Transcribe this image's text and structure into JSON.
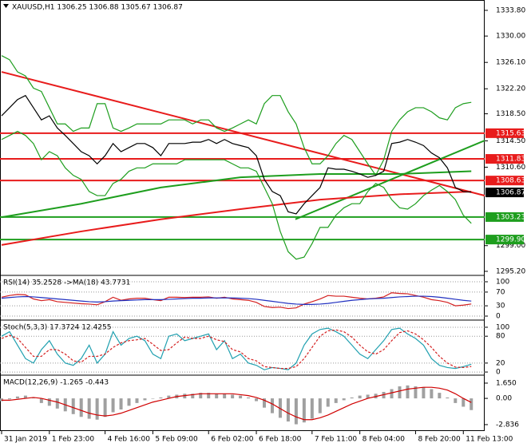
{
  "chart_data": [
    {
      "type": "line",
      "title": "XAUUSD,H1 1306.25 1306.88 1305.67 1306.87",
      "categories": [
        "31 Jan 2019",
        null,
        null,
        null,
        null,
        null,
        "1 Feb 23:00",
        null,
        null,
        null,
        null,
        null,
        null,
        "4 Feb 16:00",
        null,
        null,
        null,
        null,
        null,
        "5 Feb 09:00",
        null,
        null,
        null,
        null,
        null,
        null,
        "6 Feb 02:00",
        null,
        null,
        null,
        null,
        null,
        "6 Feb 18:00",
        null,
        null,
        null,
        null,
        null,
        null,
        "7 Feb 11:00",
        null,
        null,
        null,
        null,
        null,
        "8 Feb 04:00",
        null,
        null,
        null,
        null,
        null,
        null,
        "8 Feb 20:00",
        null,
        null,
        null,
        null,
        null,
        "11 Feb 13:00",
        null
      ],
      "ylim": [
        1294.6,
        1335.33
      ],
      "yticks": [
        {
          "value": 1333.8,
          "label": "1333.80"
        },
        {
          "value": 1330,
          "label": "1330.00"
        },
        {
          "value": 1326.1,
          "label": "1326.10"
        },
        {
          "value": 1322.2,
          "label": "1322.20"
        },
        {
          "value": 1318.5,
          "label": "1318.50"
        },
        {
          "value": 1314.5,
          "label": "1314.50"
        },
        {
          "value": 1310.6,
          "label": "1310.60"
        },
        {
          "value": 1299,
          "label": "1299.00"
        },
        {
          "value": 1295.2,
          "label": "1295.20"
        }
      ],
      "grid": false,
      "series": [
        {
          "color": "#1e9e1e",
          "values": [
            1327.1,
            1326.5,
            1324.7,
            1324.1,
            1322.3,
            1321.8,
            1319.4,
            1317.0,
            1317.0,
            1315.9,
            1316.4,
            1316.4,
            1320.0,
            1320.0,
            1316.4,
            1315.9,
            1316.4,
            1317.0,
            1317.0,
            1317.0,
            1317.0,
            1317.6,
            1317.6,
            1317.6,
            1317.0,
            1317.6,
            1317.6,
            1316.4,
            1315.9,
            1316.4,
            1317.0,
            1317.6,
            1317.0,
            1320.0,
            1321.2,
            1321.2,
            1318.8,
            1317.0,
            1313.5,
            1311.1,
            1311.1,
            1312.3,
            1314.1,
            1315.3,
            1314.7,
            1312.9,
            1311.1,
            1309.4,
            1311.7,
            1315.9,
            1317.6,
            1318.8,
            1319.4,
            1319.4,
            1318.8,
            1317.9,
            1317.6,
            1319.4,
            1320.0,
            1320.2
          ]
        },
        {
          "color": "#1e9e1e",
          "values": [
            1314.7,
            1315.3,
            1315.9,
            1315.3,
            1314.1,
            1311.7,
            1312.9,
            1312.3,
            1310.5,
            1309.4,
            1308.8,
            1307.0,
            1306.4,
            1306.4,
            1308.2,
            1308.8,
            1310.0,
            1310.5,
            1310.5,
            1311.1,
            1311.1,
            1311.1,
            1311.1,
            1311.7,
            1311.7,
            1311.7,
            1311.7,
            1311.7,
            1311.7,
            1311.1,
            1310.5,
            1310.5,
            1310.0,
            1307.6,
            1305.2,
            1301.1,
            1298.1,
            1297.0,
            1297.3,
            1299.3,
            1301.7,
            1301.7,
            1303.5,
            1304.6,
            1305.2,
            1305.2,
            1307.0,
            1308.2,
            1307.6,
            1305.8,
            1304.6,
            1304.4,
            1305.2,
            1306.4,
            1307.2,
            1307.9,
            1307.0,
            1305.8,
            1303.5,
            1302.3
          ]
        },
        {
          "color": "#000000",
          "values": [
            1318.2,
            1319.4,
            1320.6,
            1321.2,
            1319.4,
            1317.6,
            1318.2,
            1316.4,
            1315.3,
            1314.1,
            1312.9,
            1312.3,
            1311.1,
            1312.3,
            1314.1,
            1312.9,
            1313.5,
            1314.1,
            1314.1,
            1313.5,
            1312.3,
            1314.1,
            1314.1,
            1314.1,
            1314.3,
            1314.3,
            1314.7,
            1314.1,
            1314.7,
            1314.1,
            1313.8,
            1313.5,
            1312.3,
            1308.8,
            1307.0,
            1306.4,
            1304.0,
            1303.7,
            1305.2,
            1306.4,
            1307.6,
            1310.5,
            1310.3,
            1310.3,
            1310.0,
            1309.6,
            1309.1,
            1309.4,
            1310.0,
            1314.1,
            1314.3,
            1314.7,
            1314.3,
            1313.8,
            1312.7,
            1312.0,
            1310.5,
            1307.6,
            1307.0,
            1306.9
          ]
        }
      ],
      "trendlines": [
        {
          "color": "#e81c1c",
          "points": [
            [
              0,
              1324.7
            ],
            [
              61,
              1306.3
            ]
          ]
        },
        {
          "color": "#1e9e1e",
          "points": [
            [
              36.9,
              1302.9
            ],
            [
              61,
              1314.7
            ]
          ]
        },
        {
          "color": "#e81c1c",
          "points": [
            [
              0,
              1299.1
            ],
            [
              10,
              1301.1
            ],
            [
              20,
              1302.9
            ],
            [
              30,
              1304.4
            ],
            [
              40,
              1305.8
            ],
            [
              50,
              1306.6
            ],
            [
              59,
              1307.0
            ]
          ]
        },
        {
          "color": "#1e9e1e",
          "points": [
            [
              0,
              1303.2
            ],
            [
              10,
              1305.2
            ],
            [
              20,
              1307.6
            ],
            [
              30,
              1309.1
            ],
            [
              40,
              1309.6
            ],
            [
              50,
              1309.6
            ],
            [
              59,
              1310.0
            ]
          ]
        }
      ],
      "levels": [
        1315.63,
        1311.83,
        1308.63,
        1303.23,
        {
          "value": 1299.9,
          "label": "1299.90"
        }
      ],
      "level_colors": [
        "#e81c1c",
        "#e81c1c",
        "#e81c1c",
        "#1e9e1e",
        "#1e9e1e"
      ],
      "last_price": 1306.87
    },
    {
      "type": "line",
      "title": "RSI(14) 35.2528 ->MA(18) 43.7731",
      "ylim": [
        -11.6,
        118.6
      ],
      "yticks": [
        100,
        70,
        30,
        0
      ],
      "grid": true,
      "series": [
        {
          "color": "#d42020",
          "values": [
            55,
            60,
            63,
            62,
            50,
            45,
            48,
            42,
            40,
            38,
            36,
            35,
            33,
            42,
            55,
            46,
            50,
            52,
            52,
            48,
            45,
            55,
            55,
            54,
            55,
            55,
            56,
            52,
            55,
            50,
            48,
            46,
            40,
            28,
            25,
            26,
            22,
            24,
            35,
            42,
            50,
            60,
            58,
            58,
            55,
            52,
            50,
            52,
            56,
            68,
            66,
            65,
            60,
            55,
            48,
            45,
            40,
            30,
            32,
            35.3
          ]
        },
        {
          "color": "#2030c0",
          "values": [
            52,
            54,
            56,
            57,
            56,
            54,
            52,
            50,
            48,
            46,
            44,
            42,
            41,
            42,
            44,
            45,
            46,
            47,
            48,
            48,
            48,
            49,
            50,
            51,
            52,
            52,
            53,
            53,
            53,
            53,
            52,
            51,
            49,
            46,
            43,
            40,
            37,
            35,
            34,
            34,
            35,
            37,
            40,
            43,
            46,
            48,
            50,
            51,
            52,
            54,
            56,
            57,
            58,
            58,
            57,
            55,
            52,
            49,
            46,
            43.8
          ]
        }
      ]
    },
    {
      "type": "line",
      "title": "Stoch(5,3,3) 17.3724 12.4255",
      "ylim": [
        -7,
        116
      ],
      "yticks": [
        100,
        80,
        20,
        0
      ],
      "grid": true,
      "series": [
        {
          "color": "#20a0b0",
          "values": [
            80,
            90,
            60,
            30,
            20,
            50,
            70,
            40,
            20,
            15,
            30,
            60,
            20,
            40,
            90,
            60,
            75,
            80,
            70,
            40,
            30,
            80,
            85,
            70,
            75,
            80,
            85,
            50,
            70,
            30,
            40,
            20,
            15,
            5,
            10,
            8,
            5,
            20,
            60,
            85,
            95,
            98,
            90,
            80,
            60,
            40,
            30,
            50,
            70,
            95,
            98,
            85,
            75,
            60,
            30,
            15,
            10,
            8,
            12,
            17.4
          ]
        },
        {
          "color": "#d42020",
          "dash": true,
          "values": [
            75,
            82,
            75,
            55,
            35,
            35,
            50,
            50,
            40,
            25,
            22,
            35,
            35,
            40,
            55,
            65,
            70,
            72,
            75,
            62,
            48,
            50,
            65,
            78,
            75,
            75,
            80,
            72,
            68,
            50,
            45,
            30,
            25,
            12,
            10,
            8,
            8,
            12,
            30,
            55,
            80,
            92,
            94,
            90,
            78,
            60,
            45,
            40,
            50,
            70,
            88,
            92,
            85,
            72,
            55,
            35,
            20,
            11,
            10,
            12.4
          ]
        }
      ]
    },
    {
      "type": "bar",
      "title": "MACD(12,26,9) -1.265 -0.443",
      "ylim": [
        -3.53,
        2.51
      ],
      "yticks": [
        {
          "value": 1.65,
          "label": "1.650"
        },
        {
          "value": 0,
          "label": "0.00"
        },
        -2.836
      ],
      "grid": false,
      "color": "#a0a0a0",
      "values": [
        -0.3,
        -0.1,
        0.2,
        0.3,
        0.1,
        -0.5,
        -0.8,
        -1.1,
        -1.4,
        -1.7,
        -2.0,
        -2.2,
        -2.3,
        -2.0,
        -1.5,
        -1.2,
        -0.8,
        -0.5,
        -0.2,
        0.0,
        0.1,
        0.3,
        0.4,
        0.5,
        0.5,
        0.6,
        0.6,
        0.5,
        0.5,
        0.4,
        0.3,
        0.1,
        -0.3,
        -1.0,
        -1.6,
        -2.1,
        -2.5,
        -2.8,
        -2.6,
        -2.2,
        -1.6,
        -0.9,
        -0.5,
        -0.2,
        0.1,
        0.3,
        0.4,
        0.5,
        0.7,
        1.0,
        1.3,
        1.4,
        1.3,
        1.2,
        1.0,
        0.6,
        0.1,
        -0.5,
        -0.9,
        -1.265
      ],
      "series": [
        {
          "color": "#d00000",
          "values": [
            -0.2,
            -0.2,
            -0.1,
            0.0,
            0.1,
            0.0,
            -0.2,
            -0.4,
            -0.7,
            -1.0,
            -1.3,
            -1.6,
            -1.8,
            -1.9,
            -1.8,
            -1.6,
            -1.3,
            -1.0,
            -0.7,
            -0.4,
            -0.2,
            0.0,
            0.2,
            0.3,
            0.4,
            0.5,
            0.5,
            0.5,
            0.5,
            0.5,
            0.4,
            0.3,
            0.1,
            -0.2,
            -0.6,
            -1.1,
            -1.6,
            -2.0,
            -2.3,
            -2.3,
            -2.1,
            -1.8,
            -1.4,
            -1.0,
            -0.6,
            -0.3,
            0.0,
            0.2,
            0.4,
            0.6,
            0.8,
            1.0,
            1.1,
            1.2,
            1.2,
            1.1,
            0.9,
            0.5,
            0.0,
            -0.443
          ]
        }
      ]
    }
  ]
}
